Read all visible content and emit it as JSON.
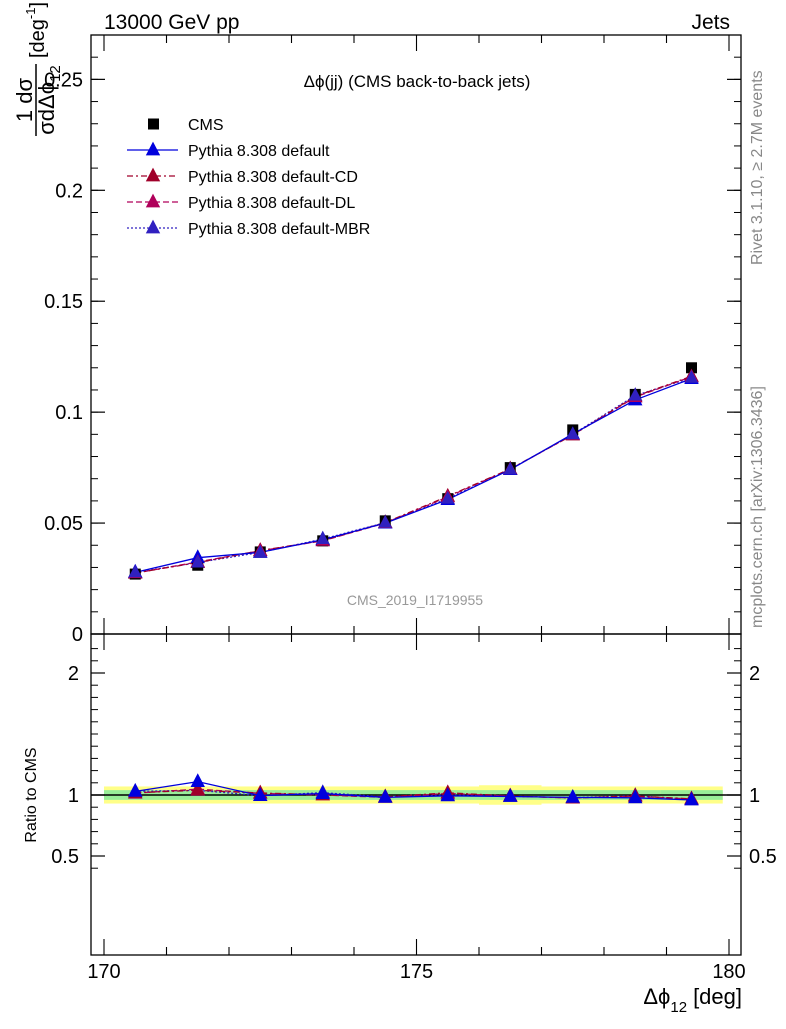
{
  "header": {
    "left": "13000 GeV pp",
    "right": "Jets"
  },
  "side": {
    "rivet": "Rivet 3.1.10, ≥ 2.7M events",
    "mcplots": "mcplots.cern.ch [arXiv:1306.3436]"
  },
  "chart_data": {
    "type": "line",
    "title": "Δϕ(jj) (CMS back-to-back jets)",
    "watermark": "CMS_2019_I1719955",
    "ylabel": {
      "numerator": "1 dσ",
      "denominator": "σdΔϕ",
      "denominator_sub": "12",
      "unit": "[deg",
      "unit_sup": "-1",
      "unit_close": "]"
    },
    "xlabel": {
      "main": "Δϕ",
      "sub": "12",
      "unit": "[deg]"
    },
    "ratio_ylabel": "Ratio to CMS",
    "xlim": [
      170,
      180
    ],
    "ylim": [
      0,
      0.27
    ],
    "ratio_ylim": [
      0.35,
      2.25
    ],
    "x_ticks": [
      170,
      175,
      180
    ],
    "y_ticks": [
      0,
      0.05,
      0.1,
      0.15,
      0.2,
      0.25
    ],
    "y_tick_labels": [
      "0",
      "0.05",
      "0.1",
      "0.15",
      "0.2",
      "0.25"
    ],
    "ratio_ticks": [
      0.5,
      1,
      2
    ],
    "ratio_tick_labels": [
      "0.5",
      "1",
      "2"
    ],
    "x": [
      170.5,
      171.5,
      172.5,
      173.5,
      174.5,
      175.5,
      176.5,
      177.5,
      178.5,
      179.4
    ],
    "data": {
      "name": "CMS",
      "values": [
        0.027,
        0.031,
        0.037,
        0.042,
        0.051,
        0.061,
        0.075,
        0.092,
        0.108,
        0.12
      ],
      "band_rel_inner": [
        0.04,
        0.04,
        0.04,
        0.04,
        0.04,
        0.04,
        0.04,
        0.04,
        0.04,
        0.04
      ],
      "band_rel_outer": [
        0.07,
        0.07,
        0.07,
        0.07,
        0.07,
        0.07,
        0.08,
        0.07,
        0.07,
        0.07
      ]
    },
    "series": [
      {
        "name": "Pythia 8.308 default",
        "color": "#0000dd",
        "dash": "solid",
        "values": [
          0.0278,
          0.0344,
          0.0368,
          0.0425,
          0.05,
          0.0606,
          0.0741,
          0.0902,
          0.1055,
          0.1151
        ]
      },
      {
        "name": "Pythia 8.308 default-CD",
        "color": "#a0002a",
        "dash": "6,3,2,3",
        "values": [
          0.0275,
          0.0322,
          0.0376,
          0.0421,
          0.0502,
          0.0621,
          0.0744,
          0.0897,
          0.1071,
          0.1162
        ]
      },
      {
        "name": "Pythia 8.308 default-DL",
        "color": "#b0005a",
        "dash": "6,3",
        "values": [
          0.0274,
          0.0325,
          0.0375,
          0.042,
          0.05,
          0.0618,
          0.0743,
          0.0898,
          0.1068,
          0.116
        ]
      },
      {
        "name": "Pythia 8.308 default-MBR",
        "color": "#3020c0",
        "dash": "2,2",
        "values": [
          0.0278,
          0.0322,
          0.0368,
          0.0428,
          0.0502,
          0.061,
          0.0742,
          0.09,
          0.1075,
          0.1155
        ]
      }
    ]
  }
}
